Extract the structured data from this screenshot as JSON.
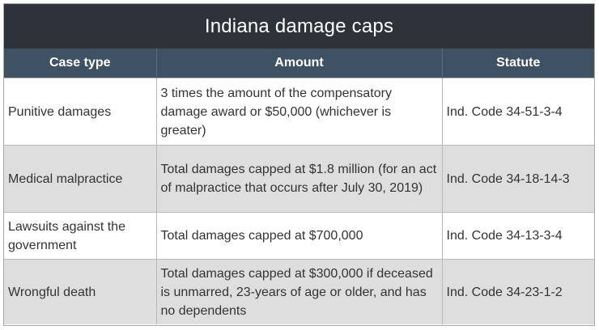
{
  "table": {
    "title": "Indiana damage caps",
    "headers": [
      "Case type",
      "Amount",
      "Statute"
    ],
    "rows": [
      {
        "case_type": "Punitive damages",
        "amount": "3 times the amount of the compensatory damage award or $50,000 (whichever is greater)",
        "statute": "Ind. Code 34-51-3-4"
      },
      {
        "case_type": "Medical malpractice",
        "amount": "Total damages capped at $1.8 million (for an act of malpractice that occurs after July 30, 2019)",
        "statute": "Ind. Code 34-18-14-3"
      },
      {
        "case_type": "Lawsuits against the government",
        "amount": "Total damages capped at $700,000",
        "statute": "Ind. Code 34-13-3-4"
      },
      {
        "case_type": "Wrongful death",
        "amount": "Total damages capped at $300,000 if deceased is unmarred, 23-years of age or older, and has no dependents",
        "statute": "Ind. Code 34-23-1-2"
      }
    ]
  },
  "colors": {
    "title_bg": "#2e333a",
    "header_bg": "#3f5264",
    "row_alt_bg": "#dedede",
    "text": "#333333"
  }
}
